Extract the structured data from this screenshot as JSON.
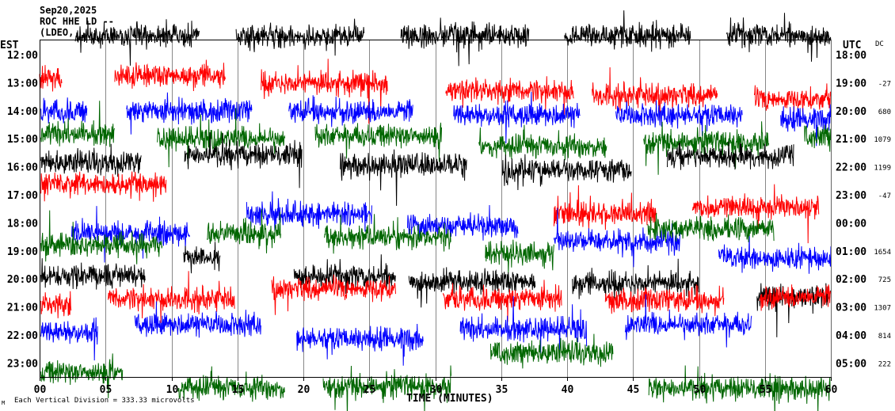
{
  "header": {
    "date": "Sep20,2025",
    "station": "ROC HHE LD --",
    "network": "(LDEO,"
  },
  "left_axis": {
    "label": "EST",
    "hours": [
      "12:00",
      "13:00",
      "14:00",
      "15:00",
      "16:00",
      "17:00",
      "18:00",
      "19:00",
      "20:00",
      "21:00",
      "22:00",
      "23:00"
    ]
  },
  "right_axis": {
    "label": "UTC",
    "hours": [
      "18:00",
      "19:00",
      "20:00",
      "21:00",
      "22:00",
      "23:00",
      "00:00",
      "01:00",
      "02:00",
      "03:00",
      "04:00",
      "05:00"
    ]
  },
  "dc": {
    "label": "DC",
    "values": [
      "",
      "-27",
      "680",
      "1079",
      "1199",
      "-47",
      "",
      "1654",
      "725",
      "1307",
      "814",
      "222"
    ]
  },
  "footer": {
    "scale_note": "Each Vertical Division =  333.33 microvolts",
    "marker": "M"
  },
  "colors": {
    "trace_cycle": [
      "#000000",
      "#ff0000",
      "#0000ff",
      "#006600"
    ],
    "grid": "#888888"
  },
  "chart_data": {
    "type": "helicorder",
    "xlabel": "TIME (MINUTES)",
    "xlim": [
      0,
      60
    ],
    "x_ticks": [
      "00",
      "05",
      "10",
      "15",
      "20",
      "25",
      "30",
      "35",
      "40",
      "45",
      "50",
      "55",
      "60"
    ],
    "grid": "vertical every 5 minutes",
    "microvolts_per_division": 333.33,
    "noise_amplitude_uv": 150,
    "rows": [
      {
        "segments": [
          [
            2.7,
            12.1,
            226
          ],
          [
            14.9,
            24.6,
            226
          ],
          [
            27.4,
            37.1,
            226
          ],
          [
            39.8,
            49.4,
            226
          ],
          [
            52.1,
            60,
            226
          ]
        ]
      },
      {
        "segments": [
          [
            0,
            1.7,
            40
          ],
          [
            5.7,
            14.1,
            85
          ],
          [
            16.8,
            26.4,
            -10
          ],
          [
            30.8,
            40.5,
            -100
          ],
          [
            41.9,
            51.4,
            -150
          ],
          [
            54.2,
            60,
            -200
          ]
        ]
      },
      {
        "segments": [
          [
            0.1,
            3.6,
            -10
          ],
          [
            6.6,
            16.1,
            -10
          ],
          [
            18.9,
            28.3,
            -10
          ],
          [
            31.4,
            41,
            -55
          ],
          [
            43.7,
            53.3,
            -55
          ],
          [
            56.2,
            60,
            -100
          ]
        ]
      },
      {
        "segments": [
          [
            0.1,
            5.7,
            65
          ],
          [
            8.9,
            18.6,
            0
          ],
          [
            20.9,
            30.5,
            30
          ],
          [
            33.3,
            43,
            -95
          ],
          [
            45.8,
            55.3,
            -45
          ],
          [
            58,
            60,
            30
          ]
        ]
      },
      {
        "segments": [
          [
            0.1,
            7.7,
            45
          ],
          [
            11,
            19.9,
            140
          ],
          [
            22.8,
            32.4,
            20
          ],
          [
            35.1,
            44.9,
            -45
          ],
          [
            47.6,
            57.2,
            115
          ]
        ]
      },
      {
        "segments": [
          [
            0.1,
            9.6,
            130
          ],
          [
            39,
            46.8,
            -225
          ],
          [
            49.5,
            59.1,
            -150
          ]
        ]
      },
      {
        "segments": [
          [
            2.4,
            11.4,
            -130
          ],
          [
            15.7,
            25.2,
            100
          ],
          [
            27.9,
            36.3,
            -40
          ],
          [
            39,
            48.6,
            -225
          ],
          [
            51.5,
            60,
            -415
          ]
        ]
      },
      {
        "segments": [
          [
            0.1,
            9.3,
            65
          ],
          [
            12.7,
            18.3,
            205
          ],
          [
            21.6,
            31.2,
            160
          ],
          [
            33.8,
            39,
            -30
          ],
          [
            46.1,
            55.7,
            255
          ]
        ]
      },
      {
        "segments": [
          [
            0.1,
            8,
            40
          ],
          [
            10.9,
            13.7,
            255
          ],
          [
            19.3,
            27,
            20
          ],
          [
            28,
            37.6,
            -30
          ],
          [
            40.4,
            50,
            -55
          ],
          [
            54.4,
            60,
            -215
          ]
        ]
      },
      {
        "segments": [
          [
            0.1,
            2.4,
            30
          ],
          [
            5.2,
            14.8,
            95
          ],
          [
            17.6,
            27,
            215
          ],
          [
            30.6,
            39.6,
            95
          ],
          [
            42.9,
            51.9,
            75
          ],
          [
            54.6,
            60,
            120
          ]
        ]
      },
      {
        "segments": [
          [
            0.1,
            4.4,
            30
          ],
          [
            7.2,
            16.8,
            120
          ],
          [
            19.5,
            29.1,
            -45
          ],
          [
            31.9,
            41.5,
            75
          ],
          [
            44.4,
            54,
            120
          ]
        ]
      },
      {
        "segments": [
          [
            0.1,
            6.3,
            -115
          ],
          [
            10.5,
            18.6,
            -300
          ],
          [
            21.5,
            31.2,
            -280
          ],
          [
            34.2,
            43.5,
            120
          ],
          [
            46.2,
            60,
            -300
          ]
        ]
      }
    ]
  }
}
